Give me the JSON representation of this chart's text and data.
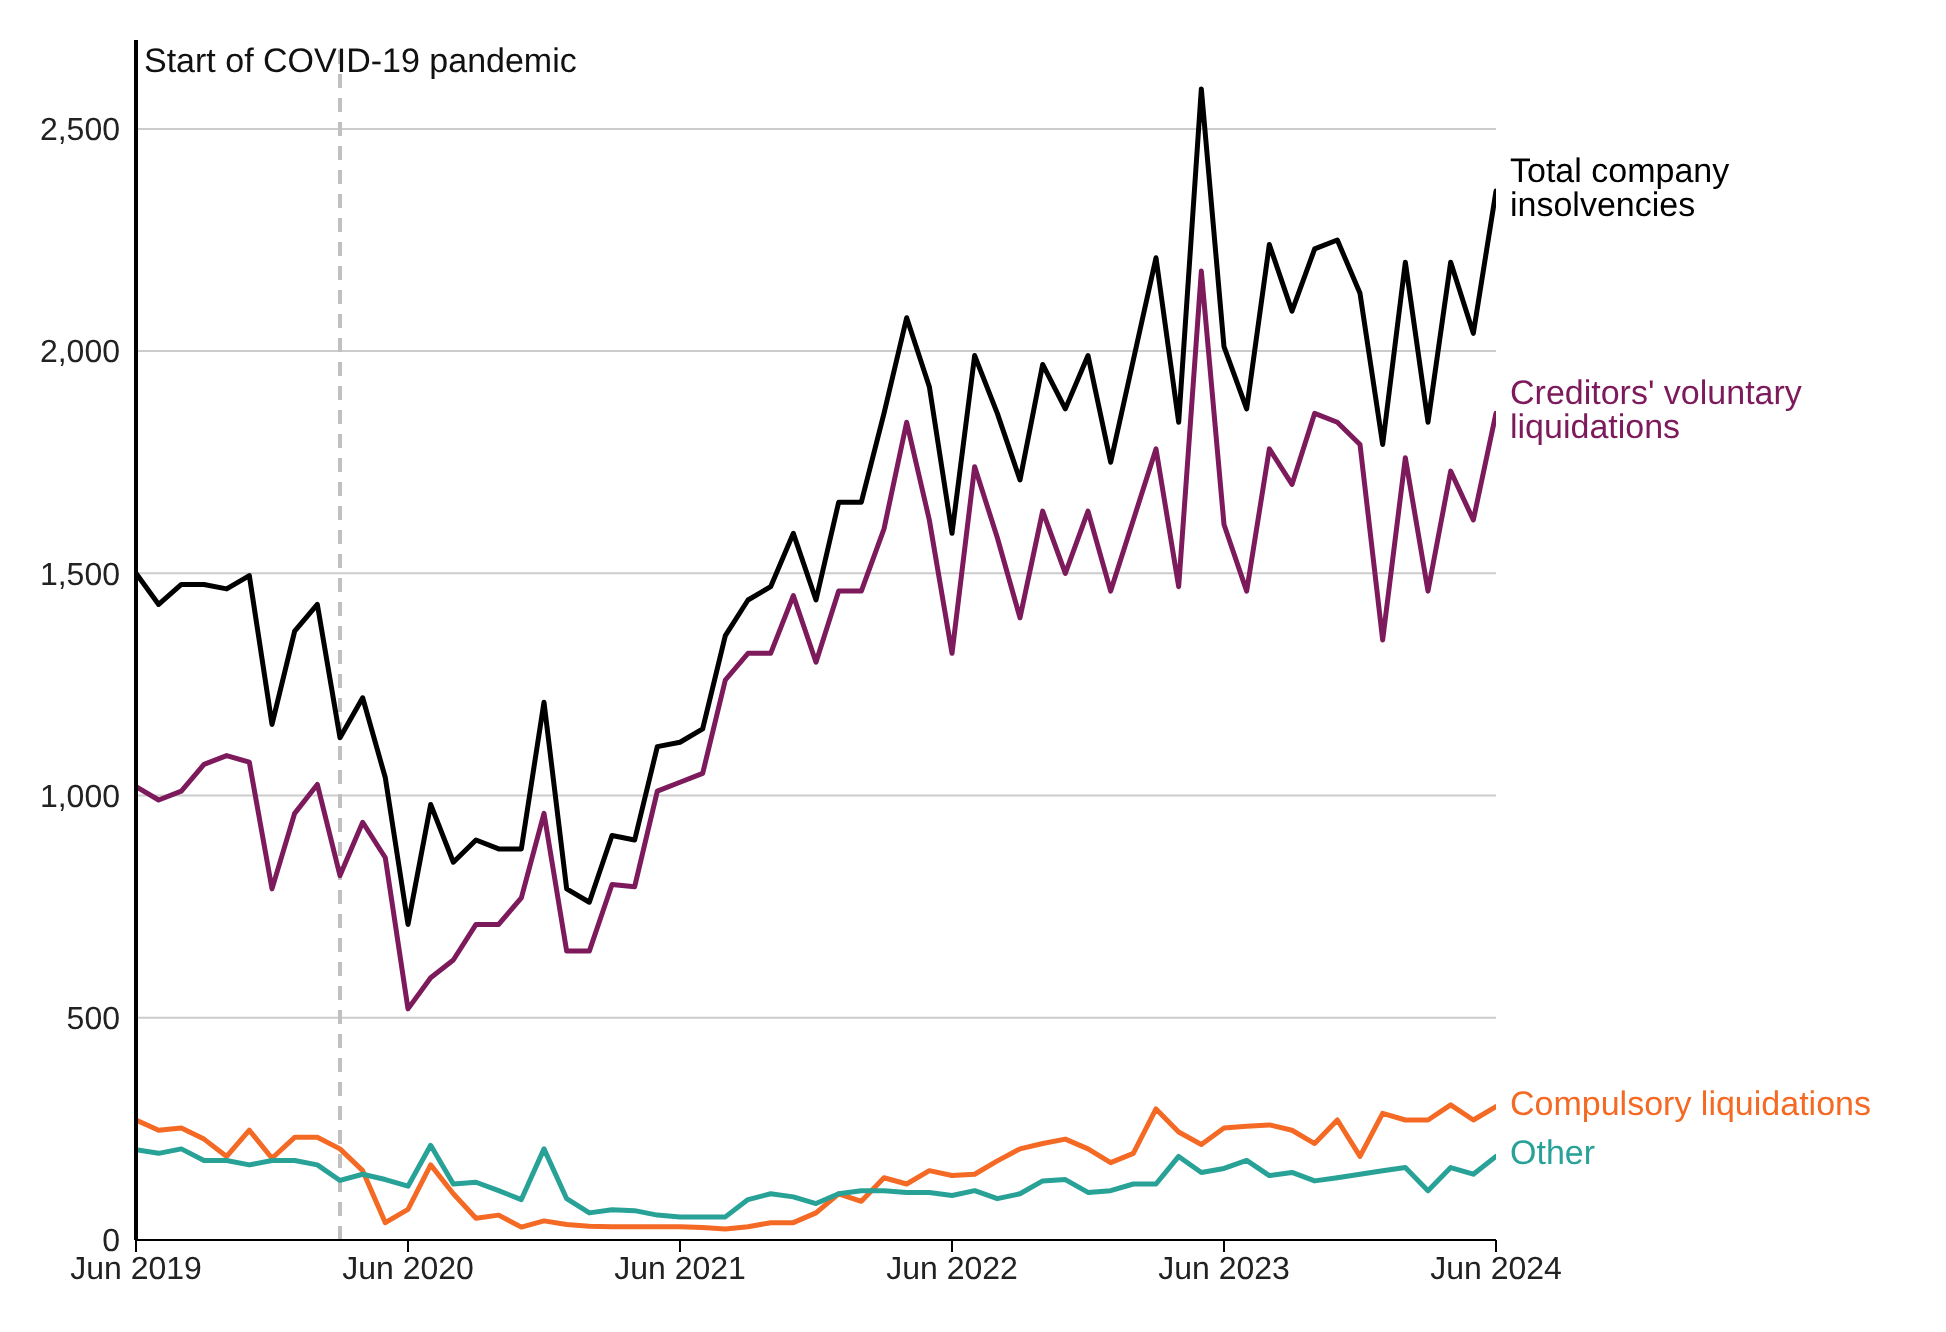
{
  "chart_data": {
    "type": "line",
    "x": [
      "2019-06",
      "2019-07",
      "2019-08",
      "2019-09",
      "2019-10",
      "2019-11",
      "2019-12",
      "2020-01",
      "2020-02",
      "2020-03",
      "2020-04",
      "2020-05",
      "2020-06",
      "2020-07",
      "2020-08",
      "2020-09",
      "2020-10",
      "2020-11",
      "2020-12",
      "2021-01",
      "2021-02",
      "2021-03",
      "2021-04",
      "2021-05",
      "2021-06",
      "2021-07",
      "2021-08",
      "2021-09",
      "2021-10",
      "2021-11",
      "2021-12",
      "2022-01",
      "2022-02",
      "2022-03",
      "2022-04",
      "2022-05",
      "2022-06",
      "2022-07",
      "2022-08",
      "2022-09",
      "2022-10",
      "2022-11",
      "2022-12",
      "2023-01",
      "2023-02",
      "2023-03",
      "2023-04",
      "2023-05",
      "2023-06",
      "2023-07",
      "2023-08",
      "2023-09",
      "2023-10",
      "2023-11",
      "2023-12",
      "2024-01",
      "2024-02",
      "2024-03",
      "2024-04",
      "2024-05",
      "2024-06"
    ],
    "series": [
      {
        "name": "Total company insolvencies",
        "color": "#000000",
        "values": [
          1500,
          1430,
          1475,
          1475,
          1465,
          1495,
          1160,
          1370,
          1430,
          1130,
          1220,
          1040,
          710,
          980,
          850,
          900,
          880,
          880,
          1210,
          790,
          760,
          910,
          900,
          1110,
          1120,
          1150,
          1360,
          1440,
          1470,
          1590,
          1440,
          1660,
          1660,
          1860,
          2075,
          1920,
          1590,
          1990,
          1860,
          1710,
          1970,
          1870,
          1990,
          1750,
          1980,
          2210,
          1840,
          2590,
          2010,
          1870,
          2240,
          2090,
          2230,
          2250,
          2130,
          1790,
          2200,
          1840,
          2200,
          2040,
          2360
        ]
      },
      {
        "name": "Creditors' voluntary liquidations",
        "color": "#7d1a5b",
        "values": [
          1020,
          990,
          1010,
          1070,
          1090,
          1075,
          790,
          960,
          1025,
          820,
          940,
          860,
          520,
          590,
          630,
          710,
          710,
          770,
          960,
          650,
          650,
          800,
          795,
          1010,
          1030,
          1050,
          1260,
          1320,
          1320,
          1450,
          1300,
          1460,
          1460,
          1600,
          1840,
          1620,
          1320,
          1740,
          1580,
          1400,
          1640,
          1500,
          1640,
          1460,
          1620,
          1780,
          1470,
          2180,
          1610,
          1460,
          1780,
          1700,
          1860,
          1840,
          1790,
          1350,
          1760,
          1460,
          1730,
          1620,
          1860
        ]
      },
      {
        "name": "Compulsory liquidations",
        "color": "#f46a25",
        "values": [
          270,
          247,
          252,
          227,
          188,
          247,
          184,
          231,
          231,
          205,
          156,
          39,
          69,
          169,
          104,
          49,
          56,
          29,
          43,
          35,
          31,
          30,
          30,
          30,
          30,
          28,
          25,
          30,
          39,
          39,
          61,
          104,
          87,
          140,
          126,
          156,
          145,
          148,
          178,
          205,
          217,
          227,
          205,
          174,
          195,
          295,
          243,
          215,
          252,
          256,
          259,
          247,
          217,
          270,
          188,
          285,
          270,
          270,
          304,
          270,
          300
        ]
      },
      {
        "name": "Other",
        "color": "#28a197",
        "values": [
          203,
          195,
          205,
          179,
          179,
          169,
          179,
          179,
          169,
          134,
          148,
          136,
          121,
          213,
          126,
          130,
          111,
          91,
          205,
          93,
          61,
          68,
          66,
          56,
          52,
          52,
          52,
          91,
          104,
          97,
          82,
          104,
          111,
          111,
          107,
          107,
          100,
          111,
          93,
          104,
          133,
          136,
          107,
          111,
          126,
          126,
          188,
          152,
          161,
          179,
          145,
          152,
          133,
          140,
          148,
          156,
          163,
          111,
          163,
          148,
          188
        ]
      }
    ],
    "xlim": [
      "2019-06",
      "2024-06"
    ],
    "xticks": [
      {
        "value": "2019-06",
        "label": "Jun 2019"
      },
      {
        "value": "2020-06",
        "label": "Jun 2020"
      },
      {
        "value": "2021-06",
        "label": "Jun 2021"
      },
      {
        "value": "2022-06",
        "label": "Jun 2022"
      },
      {
        "value": "2023-06",
        "label": "Jun 2023"
      },
      {
        "value": "2024-06",
        "label": "Jun 2024"
      }
    ],
    "ylim": [
      0,
      2700
    ],
    "yticks": [
      {
        "value": 0,
        "label": "0"
      },
      {
        "value": 500,
        "label": "500"
      },
      {
        "value": 1000,
        "label": "1,000"
      },
      {
        "value": 1500,
        "label": "1,500"
      },
      {
        "value": 2000,
        "label": "2,000"
      },
      {
        "value": 2500,
        "label": "2,500"
      }
    ],
    "grid": "y",
    "legend": false,
    "marker": "none",
    "line_style": "solid",
    "ref_lines": [
      {
        "axis": "x",
        "value": "2020-03",
        "label": "Start of COVID-19 pandemic",
        "color": "#c0c0c0",
        "line_style": "dashed"
      }
    ]
  }
}
